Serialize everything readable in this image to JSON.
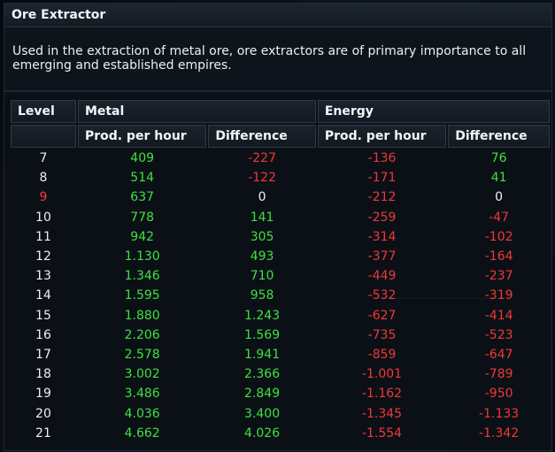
{
  "window": {
    "title": "Ore Extractor",
    "description": "Used in the extraction of metal ore, ore extractors are of primary importance to all emerging and established empires."
  },
  "table": {
    "headers": {
      "level": "Level",
      "metal": "Metal",
      "energy": "Energy",
      "metal_prod": "Prod. per hour",
      "metal_diff": "Difference",
      "energy_prod": "Prod. per hour",
      "energy_diff": "Difference"
    },
    "current_level": "9",
    "rows": [
      {
        "level": "7",
        "metal_prod": "409",
        "metal_diff": "-227",
        "energy_prod": "-136",
        "energy_diff": "76"
      },
      {
        "level": "8",
        "metal_prod": "514",
        "metal_diff": "-122",
        "energy_prod": "-171",
        "energy_diff": "41"
      },
      {
        "level": "9",
        "metal_prod": "637",
        "metal_diff": "0",
        "energy_prod": "-212",
        "energy_diff": "0"
      },
      {
        "level": "10",
        "metal_prod": "778",
        "metal_diff": "141",
        "energy_prod": "-259",
        "energy_diff": "-47"
      },
      {
        "level": "11",
        "metal_prod": "942",
        "metal_diff": "305",
        "energy_prod": "-314",
        "energy_diff": "-102"
      },
      {
        "level": "12",
        "metal_prod": "1.130",
        "metal_diff": "493",
        "energy_prod": "-377",
        "energy_diff": "-164"
      },
      {
        "level": "13",
        "metal_prod": "1.346",
        "metal_diff": "710",
        "energy_prod": "-449",
        "energy_diff": "-237"
      },
      {
        "level": "14",
        "metal_prod": "1.595",
        "metal_diff": "958",
        "energy_prod": "-532",
        "energy_diff": "-319"
      },
      {
        "level": "15",
        "metal_prod": "1.880",
        "metal_diff": "1.243",
        "energy_prod": "-627",
        "energy_diff": "-414"
      },
      {
        "level": "16",
        "metal_prod": "2.206",
        "metal_diff": "1.569",
        "energy_prod": "-735",
        "energy_diff": "-523"
      },
      {
        "level": "17",
        "metal_prod": "2.578",
        "metal_diff": "1.941",
        "energy_prod": "-859",
        "energy_diff": "-647"
      },
      {
        "level": "18",
        "metal_prod": "3.002",
        "metal_diff": "2.366",
        "energy_prod": "-1.001",
        "energy_diff": "-789"
      },
      {
        "level": "19",
        "metal_prod": "3.486",
        "metal_diff": "2.849",
        "energy_prod": "-1.162",
        "energy_diff": "-950"
      },
      {
        "level": "20",
        "metal_prod": "4.036",
        "metal_diff": "3.400",
        "energy_prod": "-1.345",
        "energy_diff": "-1.133"
      },
      {
        "level": "21",
        "metal_prod": "4.662",
        "metal_diff": "4.026",
        "energy_prod": "-1.554",
        "energy_diff": "-1.342"
      }
    ]
  },
  "colors": {
    "positive": "#3fe13f",
    "negative": "#f03838",
    "neutral": "#f2f2f2",
    "current_level": "#ff3b3b"
  }
}
